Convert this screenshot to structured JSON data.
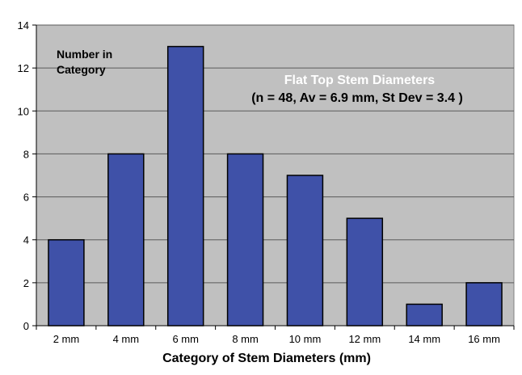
{
  "chart_data": {
    "type": "bar",
    "title": "Flat Top Stem Diameters",
    "subtitle": "(n = 48, Av = 6.9 mm, St Dev = 3.4 )",
    "xlabel": "Category of Stem Diameters (mm)",
    "ylabel_lines": [
      "Number in",
      "Category"
    ],
    "categories": [
      "2 mm",
      "4 mm",
      "6 mm",
      "8 mm",
      "10 mm",
      "12 mm",
      "14 mm",
      "16 mm"
    ],
    "values": [
      4,
      8,
      13,
      8,
      7,
      5,
      1,
      2
    ],
    "ylim": [
      0,
      14
    ],
    "yticks": [
      0,
      2,
      4,
      6,
      8,
      10,
      12,
      14
    ],
    "grid": true,
    "legend": "none",
    "colors": {
      "bar_fill": "#3f51a8",
      "bar_stroke": "#000000",
      "plot_background": "#c0c0c0",
      "gridline": "#5a5a5a",
      "title": "#ffffff",
      "text": "#000000"
    }
  }
}
